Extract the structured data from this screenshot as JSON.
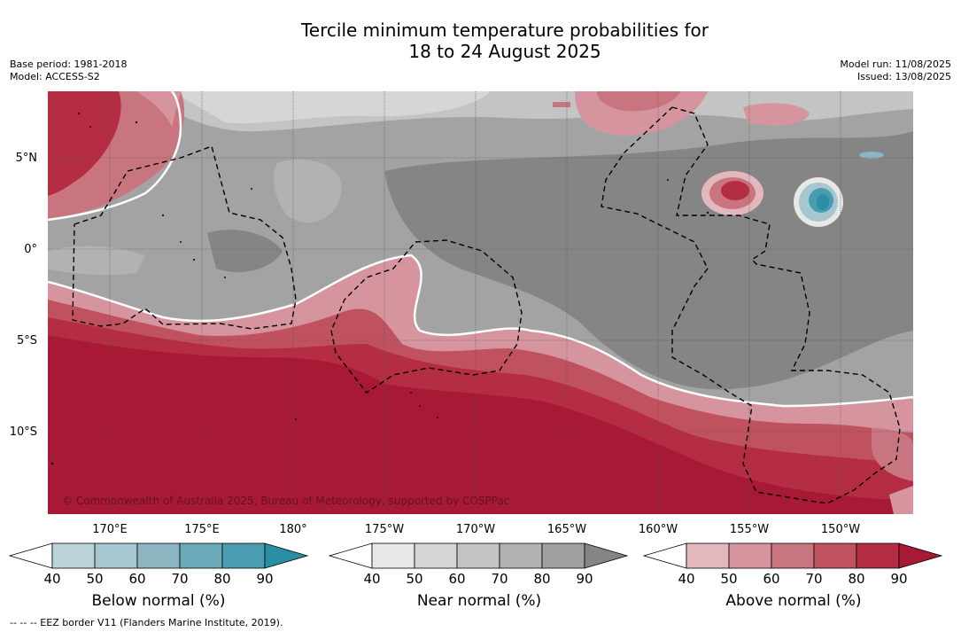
{
  "title_line1": "Tercile minimum temperature probabilities for",
  "title_line2": "18 to 24 August 2025",
  "meta_left": [
    "Base period: 1981-2018",
    "Model: ACCESS-S2"
  ],
  "meta_right": [
    "Model run: 11/08/2025",
    "Issued: 13/08/2025"
  ],
  "lat_labels": [
    "5°N",
    "0°",
    "5°S",
    "10°S"
  ],
  "lon_labels": [
    "170°E",
    "175°E",
    "180°",
    "175°W",
    "170°W",
    "165°W",
    "160°W",
    "155°W",
    "150°W"
  ],
  "copyright": "© Commonwealth of Australia 2025, Bureau of Meteorology, supported by COSPPac",
  "colorbars": [
    {
      "title": "Below normal (%)",
      "ticks": [
        "40",
        "50",
        "60",
        "70",
        "80",
        "90"
      ],
      "colors": [
        "#ffffff",
        "#bcd2d9",
        "#a6c7cf",
        "#8bb5c1",
        "#6aa9b8",
        "#4a9db0",
        "#2a8ea5"
      ]
    },
    {
      "title": "Near normal (%)",
      "ticks": [
        "40",
        "50",
        "60",
        "70",
        "80",
        "90"
      ],
      "colors": [
        "#ffffff",
        "#e8e8e8",
        "#d6d6d6",
        "#c4c4c4",
        "#b2b2b2",
        "#a0a0a0",
        "#858585"
      ]
    },
    {
      "title": "Above normal (%)",
      "ticks": [
        "40",
        "50",
        "60",
        "70",
        "80",
        "90"
      ],
      "colors": [
        "#ffffff",
        "#e2b8bd",
        "#d6959e",
        "#c97580",
        "#c0525f",
        "#b52d43",
        "#a81935"
      ]
    }
  ],
  "footnote": "-- -- -- EEZ border V11 (Flanders Marine Institute, 2019)."
}
